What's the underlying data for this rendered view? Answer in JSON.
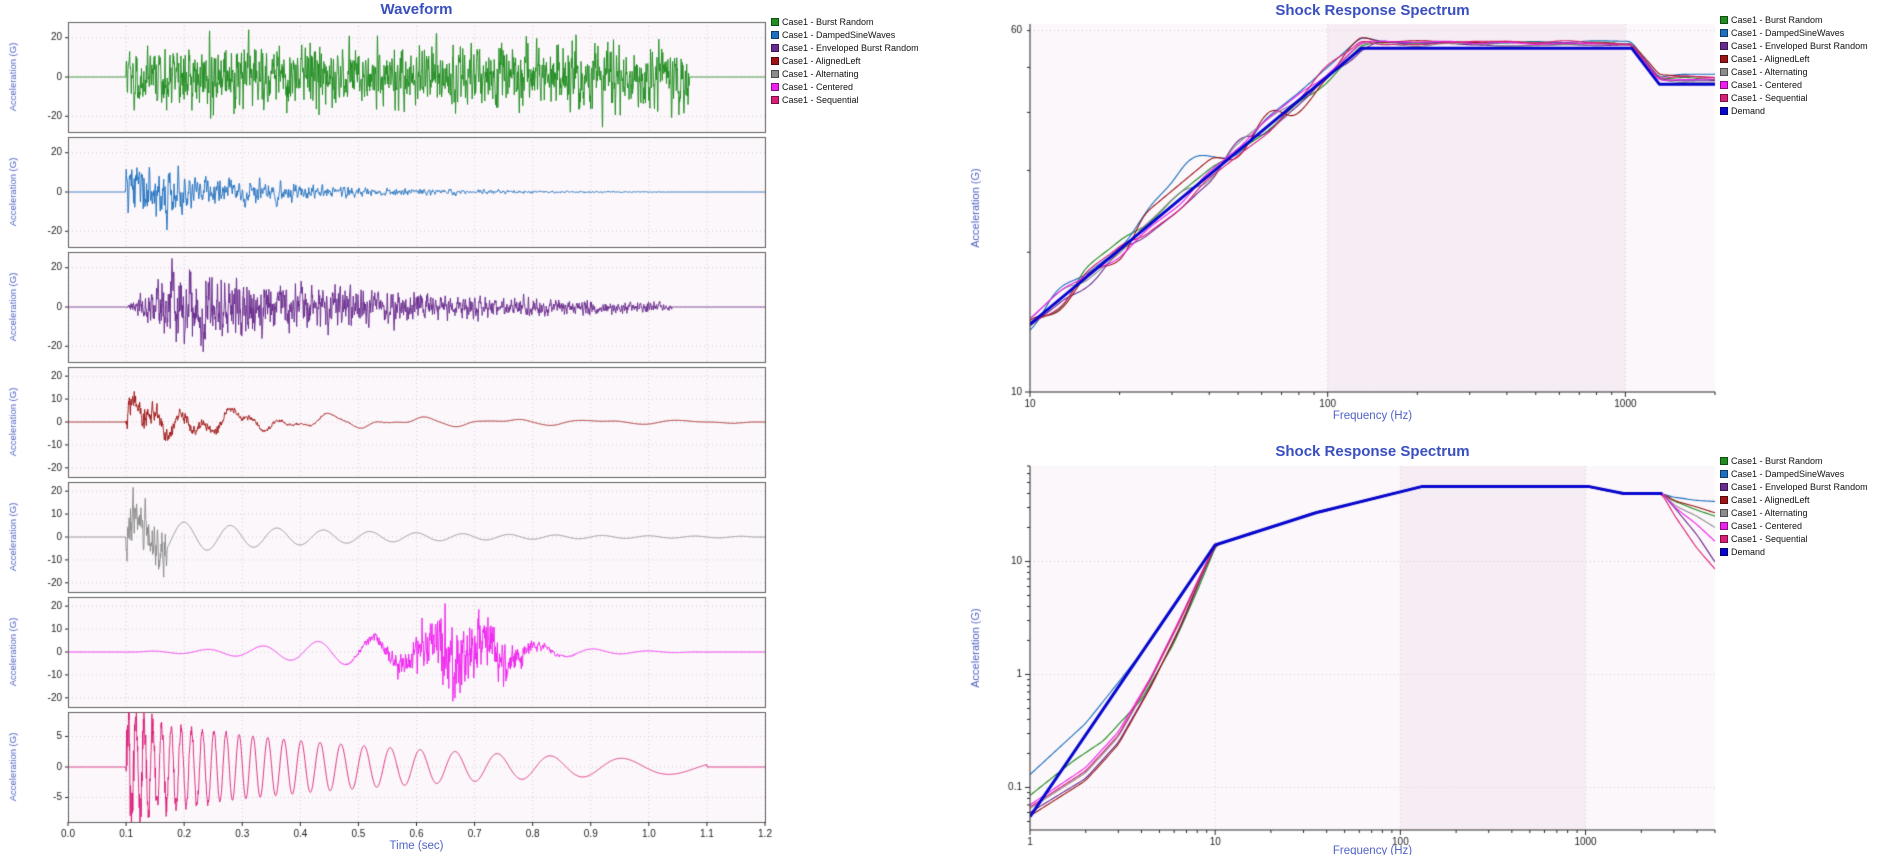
{
  "palette": {
    "background": "#ffffff",
    "title_color": "#3a50c0",
    "axis_label_color": "#5163c5",
    "tick_label_color": "#1c1c1c",
    "grid_color": "#ddcfdc",
    "plot_bg": "#fbf7fa",
    "band_color": "#f6ecf4",
    "panel_border": "#5f5f5f",
    "axis_color": "#2a2a2a",
    "demand_color": "#0707cf"
  },
  "cases": [
    {
      "label": "Case1 - Burst Random",
      "color": "#1f8d1f"
    },
    {
      "label": "Case1 - DampedSineWaves",
      "color": "#1d6fc0"
    },
    {
      "label": "Case1 - Enveloped Burst Random",
      "color": "#6a2b8f"
    },
    {
      "label": "Case1 - AlignedLeft",
      "color": "#9e1313"
    },
    {
      "label": "Case1 - Alternating",
      "color": "#8c8c8c"
    },
    {
      "label": "Case1 - Centered",
      "color": "#ef1fef"
    },
    {
      "label": "Case1 - Sequential",
      "color": "#da1f78"
    }
  ],
  "demand_label": "Demand",
  "chart_data": [
    {
      "id": "waveform",
      "type": "line",
      "title": "Waveform",
      "xlabel": "Time (sec)",
      "ylabel": "Acceleration (G)",
      "xlim": [
        0,
        1.2
      ],
      "xticks": [
        0,
        0.1,
        0.2,
        0.3,
        0.4,
        0.5,
        0.6,
        0.7,
        0.8,
        0.9,
        1.0,
        1.1,
        1.2
      ],
      "panels": [
        {
          "case": 0,
          "ylim": 28,
          "yticks": [
            20,
            0,
            -20
          ],
          "components": [
            {
              "kind": "noise",
              "start": 0.1,
              "end": 1.07,
              "amp": 32,
              "env": "flat",
              "seed": 11,
              "smooth": 1
            }
          ]
        },
        {
          "case": 1,
          "ylim": 28,
          "yticks": [
            20,
            0,
            -20
          ],
          "components": [
            {
              "kind": "noise",
              "start": 0.1,
              "end": 1.03,
              "amp": 42,
              "env": "decay",
              "tau": 0.22,
              "seed": 22,
              "smooth": 2
            }
          ]
        },
        {
          "case": 2,
          "ylim": 28,
          "yticks": [
            20,
            0,
            -20
          ],
          "components": [
            {
              "kind": "noise",
              "start": 0.1,
              "end": 1.04,
              "amp": 40,
              "env": "attackdecay",
              "attack": 0.08,
              "tau": 0.42,
              "seed": 33,
              "smooth": 1
            }
          ]
        },
        {
          "case": 3,
          "ylim": 24,
          "yticks": [
            20,
            10,
            0,
            -10,
            -20
          ],
          "components": [
            {
              "kind": "noise",
              "start": 0.1,
              "end": 0.55,
              "amp": 13,
              "env": "decay",
              "tau": 0.12,
              "seed": 44,
              "smooth": 1
            },
            {
              "kind": "sine",
              "start": 0.1,
              "end": 1.15,
              "f": 24,
              "amp": 6,
              "env": "decay",
              "tau": 0.16
            },
            {
              "kind": "sine",
              "start": 0.1,
              "end": 1.15,
              "f": 12,
              "amp": 4.5,
              "env": "decay",
              "tau": 0.35
            },
            {
              "kind": "sine",
              "start": 0.1,
              "end": 1.18,
              "f": 6.5,
              "amp": 3.2,
              "env": "decay",
              "tau": 0.6
            }
          ]
        },
        {
          "case": 4,
          "ylim": 24,
          "yticks": [
            20,
            10,
            0,
            -10,
            -20
          ],
          "components": [
            {
              "kind": "noise",
              "start": 0.1,
              "end": 0.17,
              "amp": 22,
              "env": "flat",
              "seed": 55,
              "smooth": 1
            },
            {
              "kind": "sine",
              "start": 0.1,
              "end": 1.18,
              "f": 12.5,
              "amp": 9,
              "env": "decay",
              "tau": 0.32
            }
          ]
        },
        {
          "case": 5,
          "ylim": 24,
          "yticks": [
            20,
            10,
            0,
            -10,
            -20
          ],
          "components": [
            {
              "kind": "sine",
              "start": 0.12,
              "end": 1.08,
              "f": 10.5,
              "amp": 6.5,
              "env": "gauss",
              "center": 0.58,
              "width": 0.26
            },
            {
              "kind": "noise",
              "start": 0.45,
              "end": 0.9,
              "amp": 34,
              "env": "gauss",
              "center": 0.67,
              "width": 0.1,
              "seed": 66,
              "smooth": 1
            }
          ]
        },
        {
          "case": 6,
          "ylim": 9,
          "yticks": [
            5,
            0,
            -5
          ],
          "components": [
            {
              "kind": "chirp",
              "start": 0.1,
              "end": 1.1,
              "f0": 75,
              "f1": 4.5,
              "amp": 8,
              "env": "decay",
              "tau": 0.5
            },
            {
              "kind": "noise",
              "start": 0.1,
              "end": 0.28,
              "amp": 7,
              "env": "decay",
              "tau": 0.06,
              "seed": 77,
              "smooth": 0
            }
          ]
        }
      ]
    },
    {
      "id": "srs_top",
      "type": "line",
      "title": "Shock Response Spectrum",
      "xlabel": "Frequency (Hz)",
      "ylabel": "Acceleration (G)",
      "xscale": "log",
      "yscale": "log",
      "xlim": [
        10,
        2000
      ],
      "ylim": [
        10,
        62
      ],
      "xticks": [
        10,
        100,
        1000
      ],
      "yticks": [
        60,
        10
      ],
      "band": [
        100,
        1000
      ],
      "demand": {
        "points": [
          [
            10,
            14
          ],
          [
            130,
            55
          ],
          [
            1050,
            55
          ],
          [
            1300,
            46
          ],
          [
            2000,
            46
          ]
        ]
      },
      "series": [
        {
          "case": 0,
          "seed": 101,
          "wiggle": 0.022,
          "plateau_offset": 0.01,
          "end": 47.5
        },
        {
          "case": 1,
          "seed": 102,
          "wiggle": 0.03,
          "plateau_offset": 0.012,
          "end": 48.2,
          "bump": {
            "x": 34,
            "amp": 0.075,
            "w": 0.1
          }
        },
        {
          "case": 2,
          "seed": 103,
          "wiggle": 0.024,
          "plateau_offset": 0.008,
          "end": 46.8
        },
        {
          "case": 3,
          "seed": 104,
          "wiggle": 0.034,
          "plateau_offset": 0.013,
          "end": 48.0
        },
        {
          "case": 4,
          "seed": 105,
          "wiggle": 0.02,
          "plateau_offset": 0.007,
          "end": 46.6
        },
        {
          "case": 5,
          "seed": 106,
          "wiggle": 0.022,
          "plateau_offset": 0.011,
          "end": 47.2
        },
        {
          "case": 6,
          "seed": 107,
          "wiggle": 0.026,
          "plateau_offset": 0.012,
          "end": 47.8
        }
      ]
    },
    {
      "id": "srs_bottom",
      "type": "line",
      "title": "Shock Response Spectrum",
      "xlabel": "Frequency (Hz)",
      "ylabel": "Acceleration (G)",
      "xscale": "log",
      "yscale": "log",
      "xlim": [
        1,
        5000
      ],
      "ylim": [
        0.042,
        70
      ],
      "xticks": [
        1,
        10,
        100,
        1000
      ],
      "yticks": [
        10,
        1,
        0.1
      ],
      "band": [
        100,
        1000
      ],
      "demand": {
        "points": [
          [
            1,
            0.055
          ],
          [
            10,
            14
          ],
          [
            35,
            27
          ],
          [
            130,
            46
          ],
          [
            1050,
            46
          ],
          [
            1600,
            40
          ],
          [
            2600,
            40
          ]
        ]
      },
      "series": [
        {
          "case": 0,
          "seed": 201,
          "low": [
            [
              1,
              0.085
            ],
            [
              1.7,
              0.17
            ],
            [
              2.5,
              0.26
            ],
            [
              4,
              0.6
            ],
            [
              6,
              1.9
            ],
            [
              8,
              5.5
            ],
            [
              10,
              13.2
            ]
          ],
          "end": [
            [
              3000,
              34
            ],
            [
              4000,
              28.5
            ],
            [
              5000,
              25
            ]
          ]
        },
        {
          "case": 1,
          "seed": 202,
          "low": [
            [
              1,
              0.13
            ],
            [
              2,
              0.37
            ],
            [
              3,
              0.85
            ],
            [
              4.5,
              2.0
            ],
            [
              6.5,
              4.8
            ],
            [
              8.5,
              9.5
            ],
            [
              10,
              14.6
            ]
          ],
          "end": [
            [
              3000,
              37
            ],
            [
              4000,
              35
            ],
            [
              5000,
              33.5
            ]
          ]
        },
        {
          "case": 2,
          "seed": 203,
          "low": [
            [
              1,
              0.06
            ],
            [
              2,
              0.12
            ],
            [
              3,
              0.25
            ],
            [
              4.5,
              0.8
            ],
            [
              6.5,
              2.6
            ],
            [
              8.5,
              7.5
            ],
            [
              10,
              13.5
            ]
          ],
          "end": [
            [
              3000,
              30
            ],
            [
              4000,
              17
            ],
            [
              5000,
              10
            ]
          ]
        },
        {
          "case": 3,
          "seed": 204,
          "low": [
            [
              1,
              0.056
            ],
            [
              2,
              0.115
            ],
            [
              3,
              0.24
            ],
            [
              4.5,
              0.78
            ],
            [
              6.5,
              2.7
            ],
            [
              8.5,
              7.8
            ],
            [
              10,
              13.8
            ]
          ],
          "end": [
            [
              3000,
              35
            ],
            [
              4000,
              30
            ],
            [
              5000,
              27
            ]
          ]
        },
        {
          "case": 4,
          "seed": 205,
          "low": [
            [
              1,
              0.065
            ],
            [
              2,
              0.135
            ],
            [
              3,
              0.28
            ],
            [
              4.5,
              0.9
            ],
            [
              6.5,
              3.0
            ],
            [
              8.5,
              8.0
            ],
            [
              10,
              14.0
            ]
          ],
          "end": [
            [
              3000,
              32
            ],
            [
              4000,
              25
            ],
            [
              5000,
              20
            ]
          ]
        },
        {
          "case": 5,
          "seed": 206,
          "low": [
            [
              1,
              0.07
            ],
            [
              2,
              0.15
            ],
            [
              3,
              0.31
            ],
            [
              4.5,
              0.95
            ],
            [
              6.5,
              3.2
            ],
            [
              8.5,
              8.2
            ],
            [
              10,
              14.1
            ]
          ],
          "end": [
            [
              3000,
              31
            ],
            [
              4000,
              21
            ],
            [
              5000,
              15
            ]
          ]
        },
        {
          "case": 6,
          "seed": 207,
          "low": [
            [
              1,
              0.067
            ],
            [
              2,
              0.14
            ],
            [
              3,
              0.29
            ],
            [
              4.5,
              0.92
            ],
            [
              6.5,
              3.1
            ],
            [
              8.5,
              8.1
            ],
            [
              10,
              13.9
            ]
          ],
          "end": [
            [
              3000,
              26
            ],
            [
              4000,
              13
            ],
            [
              5000,
              8.5
            ]
          ]
        }
      ]
    }
  ]
}
